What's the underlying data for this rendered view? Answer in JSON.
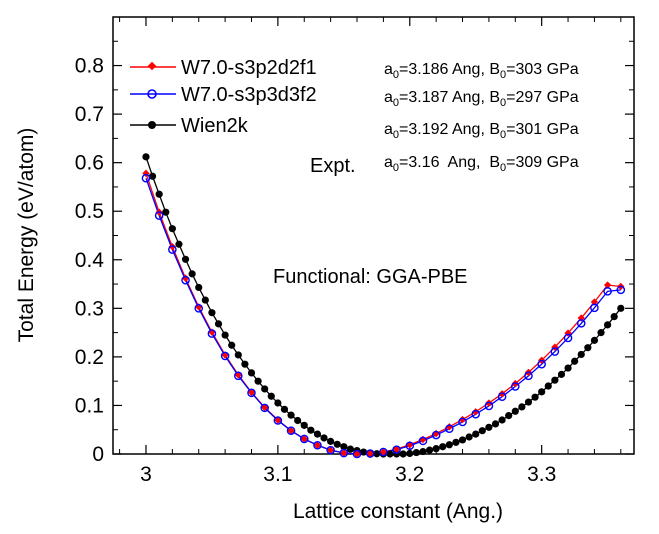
{
  "chart_data": {
    "type": "line",
    "title": "",
    "xlabel": "Lattice constant (Ang.)",
    "ylabel": "Total Energy (eV/atom)",
    "xlim": [
      2.975,
      3.37
    ],
    "ylim": [
      0,
      0.9
    ],
    "xticks": [
      3.0,
      3.1,
      3.2,
      3.3
    ],
    "xtick_labels": [
      "3",
      "3.1",
      "3.2",
      "3.3"
    ],
    "yticks": [
      0,
      0.1,
      0.2,
      0.3,
      0.4,
      0.5,
      0.6,
      0.7,
      0.8
    ],
    "ytick_labels": [
      "0",
      "0.1",
      "0.2",
      "0.3",
      "0.4",
      "0.5",
      "0.6",
      "0.7",
      "0.8"
    ],
    "grid": false,
    "legend_position": "top-left",
    "series": [
      {
        "name": "W7.0-s3p2d2f1",
        "color": "#ff0000",
        "marker": "diamond-filled",
        "a0": 3.186,
        "x": [
          3.0,
          3.01,
          3.02,
          3.03,
          3.04,
          3.05,
          3.06,
          3.07,
          3.08,
          3.09,
          3.1,
          3.11,
          3.12,
          3.13,
          3.14,
          3.15,
          3.16,
          3.17,
          3.18,
          3.19,
          3.2,
          3.21,
          3.22,
          3.23,
          3.24,
          3.25,
          3.26,
          3.27,
          3.28,
          3.29,
          3.3,
          3.31,
          3.32,
          3.33,
          3.34,
          3.35,
          3.36
        ],
        "y": [
          0.578,
          0.498,
          0.427,
          0.362,
          0.303,
          0.251,
          0.204,
          0.163,
          0.127,
          0.096,
          0.07,
          0.048,
          0.031,
          0.018,
          0.008,
          0.002,
          0.0,
          0.001,
          0.004,
          0.01,
          0.019,
          0.03,
          0.042,
          0.056,
          0.071,
          0.087,
          0.105,
          0.124,
          0.145,
          0.168,
          0.193,
          0.22,
          0.249,
          0.28,
          0.313,
          0.348,
          0.345
        ]
      },
      {
        "name": "W7.0-s3p3d3f2",
        "color": "#0000ff",
        "marker": "circle-open",
        "a0": 3.187,
        "x": [
          3.0,
          3.01,
          3.02,
          3.03,
          3.04,
          3.05,
          3.06,
          3.07,
          3.08,
          3.09,
          3.1,
          3.11,
          3.12,
          3.13,
          3.14,
          3.15,
          3.16,
          3.17,
          3.18,
          3.19,
          3.2,
          3.21,
          3.22,
          3.23,
          3.24,
          3.25,
          3.26,
          3.27,
          3.28,
          3.29,
          3.3,
          3.31,
          3.32,
          3.33,
          3.34,
          3.35,
          3.36
        ],
        "y": [
          0.568,
          0.491,
          0.421,
          0.358,
          0.3,
          0.248,
          0.202,
          0.161,
          0.126,
          0.095,
          0.069,
          0.048,
          0.031,
          0.018,
          0.008,
          0.002,
          0.0,
          0.001,
          0.004,
          0.009,
          0.017,
          0.027,
          0.039,
          0.052,
          0.066,
          0.082,
          0.099,
          0.118,
          0.139,
          0.161,
          0.185,
          0.211,
          0.239,
          0.269,
          0.301,
          0.335,
          0.338
        ]
      },
      {
        "name": "Wien2k",
        "color": "#000000",
        "marker": "circle-filled",
        "a0": 3.192,
        "x": [
          3.0,
          3.005,
          3.01,
          3.015,
          3.02,
          3.025,
          3.03,
          3.035,
          3.04,
          3.045,
          3.05,
          3.055,
          3.06,
          3.065,
          3.07,
          3.075,
          3.08,
          3.085,
          3.09,
          3.095,
          3.1,
          3.105,
          3.11,
          3.115,
          3.12,
          3.125,
          3.13,
          3.135,
          3.14,
          3.145,
          3.15,
          3.155,
          3.16,
          3.165,
          3.17,
          3.175,
          3.18,
          3.185,
          3.19,
          3.195,
          3.2,
          3.205,
          3.21,
          3.215,
          3.22,
          3.225,
          3.23,
          3.235,
          3.24,
          3.245,
          3.25,
          3.255,
          3.26,
          3.265,
          3.27,
          3.275,
          3.28,
          3.285,
          3.29,
          3.295,
          3.3,
          3.305,
          3.31,
          3.315,
          3.32,
          3.325,
          3.33,
          3.335,
          3.34,
          3.345,
          3.35,
          3.355,
          3.36
        ],
        "y": [
          0.612,
          0.572,
          0.535,
          0.498,
          0.464,
          0.432,
          0.401,
          0.371,
          0.343,
          0.317,
          0.291,
          0.268,
          0.245,
          0.224,
          0.204,
          0.185,
          0.167,
          0.15,
          0.134,
          0.119,
          0.105,
          0.092,
          0.08,
          0.069,
          0.059,
          0.049,
          0.041,
          0.033,
          0.026,
          0.02,
          0.015,
          0.01,
          0.007,
          0.004,
          0.002,
          0.0005,
          0.0,
          0.0,
          0.0,
          0.0,
          0.001,
          0.003,
          0.005,
          0.008,
          0.011,
          0.015,
          0.019,
          0.024,
          0.029,
          0.035,
          0.041,
          0.048,
          0.055,
          0.062,
          0.07,
          0.079,
          0.088,
          0.097,
          0.107,
          0.117,
          0.128,
          0.14,
          0.152,
          0.164,
          0.177,
          0.191,
          0.205,
          0.219,
          0.234,
          0.25,
          0.266,
          0.283,
          0.3
        ]
      }
    ],
    "annotations": {
      "s1": {
        "pre": "a",
        "sub1": "0",
        "mid": "=3.186 Ang, B",
        "sub2": "0",
        "post": "=303 GPa"
      },
      "s2": {
        "pre": "a",
        "sub1": "0",
        "mid": "=3.187 Ang, B",
        "sub2": "0",
        "post": "=297 GPa"
      },
      "s3": {
        "pre": "a",
        "sub1": "0",
        "mid": "=3.192 Ang, B",
        "sub2": "0",
        "post": "=301 GPa"
      },
      "expt_label": "Expt.",
      "expt": {
        "pre": "a",
        "sub1": "0",
        "mid": "=3.16  Ang,  B",
        "sub2": "0",
        "post": "=309 GPa"
      },
      "functional": "Functional: GGA-PBE"
    }
  }
}
